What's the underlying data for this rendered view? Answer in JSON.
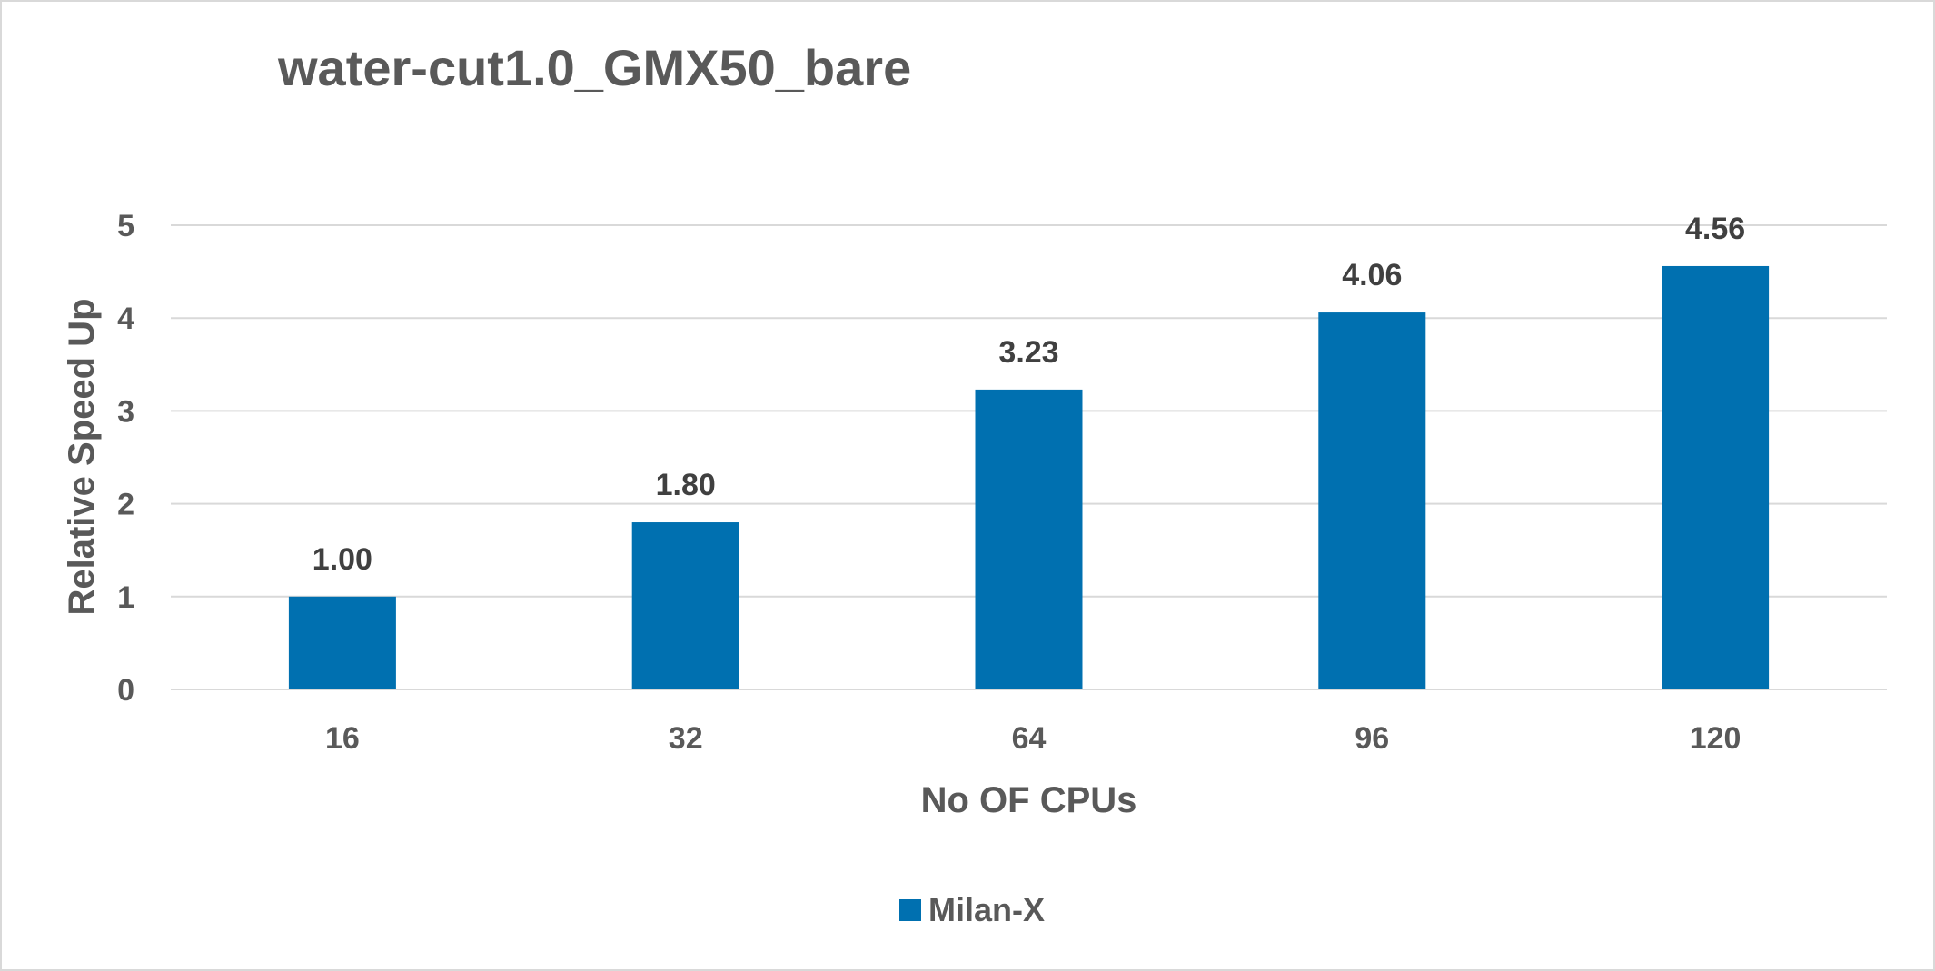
{
  "chart_data": {
    "type": "bar",
    "title": "water-cut1.0_GMX50_bare",
    "xlabel": "No OF CPUs",
    "ylabel": "Relative Speed Up",
    "categories": [
      "16",
      "32",
      "64",
      "96",
      "120"
    ],
    "series": [
      {
        "name": "Milan-X",
        "values": [
          1.0,
          1.8,
          3.23,
          4.06,
          4.56
        ],
        "labels": [
          "1.00",
          "1.80",
          "3.23",
          "4.06",
          "4.56"
        ],
        "color": "#0070B0"
      }
    ],
    "ylim": [
      0,
      5
    ],
    "yticks": [
      "0",
      "1",
      "2",
      "3",
      "4",
      "5"
    ],
    "grid": true,
    "legend_position": "bottom"
  }
}
